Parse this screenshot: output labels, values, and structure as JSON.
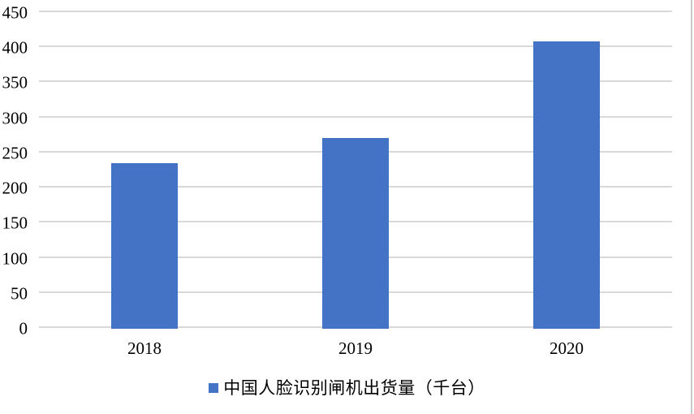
{
  "chart_data": {
    "type": "bar",
    "title": "",
    "categories": [
      "2018",
      "2019",
      "2020"
    ],
    "series": [
      {
        "name": "中国人脸识别闸机出货量（千台）",
        "values": [
          236,
          272,
          410
        ]
      }
    ],
    "xlabel": "",
    "ylabel": "",
    "ylim": [
      0,
      450
    ],
    "ytick_step": 50,
    "yticks": [
      0,
      50,
      100,
      150,
      200,
      250,
      300,
      350,
      400,
      450
    ],
    "grid": true,
    "legend_position": "bottom"
  },
  "legend": {
    "marker": "square-icon",
    "label": "中国人脸识别闸机出货量（千台）"
  },
  "colors": {
    "bar": "#4472C4",
    "gridline": "#D9D9D9",
    "axis_line": "#D9D9D9",
    "text": "#000000",
    "frame_border": "#C9C9C9",
    "background": "#FFFFFF"
  }
}
